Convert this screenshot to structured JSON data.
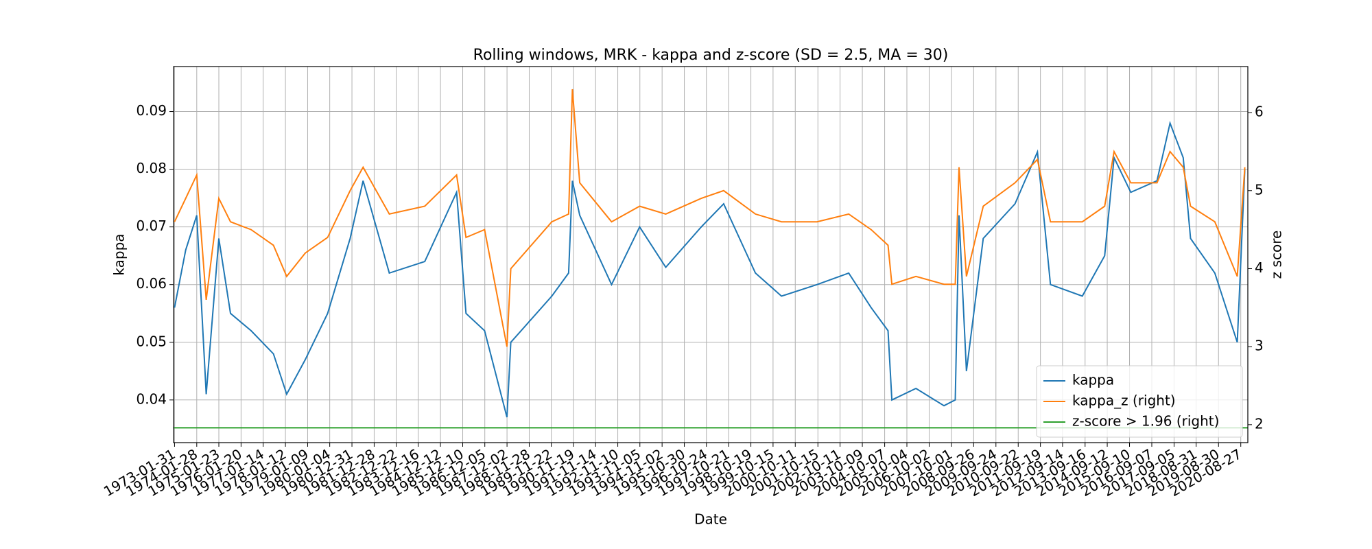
{
  "chart_data": {
    "type": "line",
    "title": "Rolling windows, MRK - kappa and z-score (SD = 2.5, MA = 30)",
    "xlabel": "Date",
    "ylabel": "kappa",
    "y2label": "z score",
    "grid": true,
    "legend": "lower right",
    "xlim": [
      "1973-01-15",
      "2020-12-20"
    ],
    "ylim": [
      0.0326,
      0.0978
    ],
    "y2lim": [
      1.77,
      6.59
    ],
    "yticks": [
      0.04,
      0.05,
      0.06,
      0.07,
      0.08,
      0.09
    ],
    "y2ticks": [
      2,
      3,
      4,
      5,
      6
    ],
    "xticks": [
      "1973-01-31",
      "1974-01-28",
      "1975-01-23",
      "1976-01-20",
      "1977-01-14",
      "1978-01-12",
      "1979-01-09",
      "1980-01-04",
      "1980-12-31",
      "1981-12-28",
      "1982-12-22",
      "1983-12-16",
      "1984-12-12",
      "1985-12-10",
      "1986-12-05",
      "1987-12-02",
      "1988-11-28",
      "1989-11-22",
      "1990-11-19",
      "1991-11-14",
      "1992-11-10",
      "1993-11-05",
      "1994-11-02",
      "1995-10-30",
      "1996-10-24",
      "1997-10-21",
      "1998-10-19",
      "1999-10-15",
      "2000-10-11",
      "2001-10-15",
      "2002-10-11",
      "2003-10-09",
      "2004-10-07",
      "2005-10-04",
      "2006-10-02",
      "2007-10-01",
      "2008-09-26",
      "2009-09-24",
      "2010-09-22",
      "2011-09-19",
      "2012-09-14",
      "2013-09-16",
      "2014-09-12",
      "2015-09-10",
      "2016-09-07",
      "2017-09-05",
      "2018-08-31",
      "2019-08-30",
      "2020-08-27"
    ],
    "x": [
      "1973-01-31",
      "1973-08-01",
      "1974-01-28",
      "1974-07-01",
      "1975-01-23",
      "1975-08-01",
      "1976-07-01",
      "1977-07-01",
      "1978-02-01",
      "1978-12-01",
      "1979-12-01",
      "1980-12-01",
      "1981-07-01",
      "1982-09-01",
      "1984-04-01",
      "1985-09-01",
      "1986-02-01",
      "1986-12-01",
      "1987-12-01",
      "1988-02-01",
      "1989-12-01",
      "1990-09-01",
      "1990-11-01",
      "1991-03-01",
      "1992-08-01",
      "1993-11-01",
      "1995-01-01",
      "1996-08-01",
      "1997-08-01",
      "1999-01-01",
      "2000-03-01",
      "2001-10-01",
      "2003-03-01",
      "2004-03-01",
      "2004-12-01",
      "2005-02-01",
      "2006-03-01",
      "2007-06-01",
      "2007-12-01",
      "2008-02-01",
      "2008-06-01",
      "2009-03-01",
      "2010-08-01",
      "2011-08-01",
      "2012-03-01",
      "2013-08-01",
      "2014-08-01",
      "2015-01-01",
      "2015-10-01",
      "2016-12-01",
      "2017-07-01",
      "2018-02-01",
      "2018-06-01",
      "2019-07-01",
      "2020-07-01",
      "2020-11-01"
    ],
    "series": [
      {
        "name": "kappa",
        "color": "#1f77b4",
        "axis": "y",
        "values": [
          0.056,
          0.066,
          0.072,
          0.041,
          0.068,
          0.055,
          0.052,
          0.048,
          0.041,
          0.047,
          0.055,
          0.068,
          0.078,
          0.062,
          0.064,
          0.076,
          0.055,
          0.052,
          0.037,
          0.05,
          0.058,
          0.062,
          0.078,
          0.072,
          0.06,
          0.07,
          0.063,
          0.07,
          0.074,
          0.062,
          0.058,
          0.06,
          0.062,
          0.056,
          0.052,
          0.04,
          0.042,
          0.039,
          0.04,
          0.072,
          0.045,
          0.068,
          0.074,
          0.083,
          0.06,
          0.058,
          0.065,
          0.082,
          0.076,
          0.078,
          0.088,
          0.082,
          0.068,
          0.062,
          0.05,
          0.08
        ]
      },
      {
        "name": "kappa_z (right)",
        "color": "#ff7f0e",
        "axis": "y2",
        "values": [
          4.6,
          4.9,
          5.2,
          3.6,
          4.9,
          4.6,
          4.5,
          4.3,
          3.9,
          4.2,
          4.4,
          5.0,
          5.3,
          4.7,
          4.8,
          5.2,
          4.4,
          4.5,
          3.0,
          4.0,
          4.6,
          4.7,
          6.3,
          5.1,
          4.6,
          4.8,
          4.7,
          4.9,
          5.0,
          4.7,
          4.6,
          4.6,
          4.7,
          4.5,
          4.3,
          3.8,
          3.9,
          3.8,
          3.8,
          5.3,
          3.9,
          4.8,
          5.1,
          5.4,
          4.6,
          4.6,
          4.8,
          5.5,
          5.1,
          5.1,
          5.5,
          5.3,
          4.8,
          4.6,
          3.9,
          5.3
        ]
      }
    ],
    "hlines": [
      {
        "name": "z-score > 1.96 (right)",
        "value": 1.96,
        "axis": "y2",
        "color": "#2ca02c"
      }
    ]
  }
}
